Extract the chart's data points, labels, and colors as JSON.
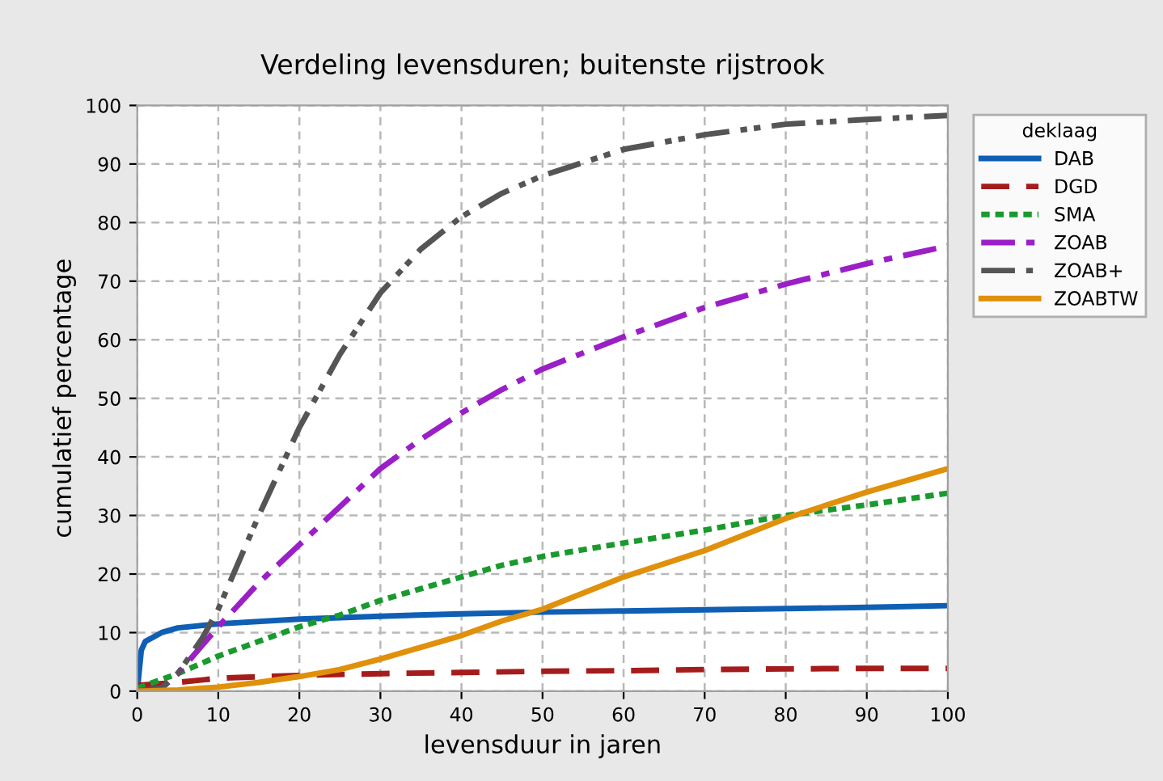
{
  "chart_data": {
    "type": "line",
    "title": "Verdeling levensduren; buitenste rijstrook",
    "xlabel": "levensduur in jaren",
    "ylabel": "cumulatief percentage",
    "legend_title": "deklaag",
    "legend": "right",
    "grid": true,
    "xlim": [
      0,
      100
    ],
    "ylim": [
      0,
      100
    ],
    "xticks": [
      0,
      10,
      20,
      30,
      40,
      50,
      60,
      70,
      80,
      90,
      100
    ],
    "yticks": [
      0,
      10,
      20,
      30,
      40,
      50,
      60,
      70,
      80,
      90,
      100
    ],
    "series": [
      {
        "name": "DAB",
        "color": "#0f5fb4",
        "line_style": "solid",
        "x": [
          0,
          0.5,
          1,
          3,
          5,
          10,
          20,
          30,
          40,
          50,
          60,
          70,
          80,
          90,
          100
        ],
        "values": [
          0,
          7,
          8.5,
          10,
          10.8,
          11.5,
          12.3,
          12.8,
          13.2,
          13.5,
          13.7,
          13.9,
          14.1,
          14.3,
          14.6
        ]
      },
      {
        "name": "DGD",
        "color": "#a51c1c",
        "line_style": "dashed",
        "x": [
          0,
          5,
          10,
          20,
          30,
          40,
          50,
          60,
          70,
          80,
          90,
          100
        ],
        "values": [
          1,
          1.5,
          2.2,
          2.7,
          3,
          3.2,
          3.4,
          3.5,
          3.7,
          3.8,
          3.9,
          3.9
        ]
      },
      {
        "name": "SMA",
        "color": "#1a9a2e",
        "line_style": "dotted",
        "x": [
          0,
          5,
          10,
          15,
          20,
          25,
          30,
          35,
          40,
          45,
          50,
          60,
          70,
          80,
          90,
          100
        ],
        "values": [
          0.5,
          3,
          6,
          8.5,
          11,
          13,
          15.5,
          17.5,
          19.5,
          21.5,
          23,
          25.3,
          27.5,
          30,
          31.8,
          33.8
        ]
      },
      {
        "name": "ZOAB",
        "color": "#9b1fc6",
        "line_style": "dashdot",
        "x": [
          0,
          3,
          5,
          10,
          15,
          20,
          25,
          30,
          35,
          40,
          45,
          50,
          60,
          70,
          80,
          90,
          100
        ],
        "values": [
          0,
          0.5,
          3,
          11,
          18.5,
          25,
          31.5,
          38,
          43,
          47.5,
          51.5,
          55,
          60.5,
          65.5,
          69.5,
          73,
          76
        ]
      },
      {
        "name": "ZOAB+",
        "color": "#555555",
        "line_style": "dashdotdot",
        "x": [
          0,
          3,
          5,
          8,
          10,
          15,
          20,
          25,
          30,
          35,
          40,
          45,
          50,
          60,
          70,
          80,
          90,
          100
        ],
        "values": [
          0,
          0.5,
          3,
          9,
          14,
          30,
          45,
          57.5,
          68,
          75.5,
          81,
          85,
          88,
          92.5,
          95,
          96.8,
          97.6,
          98.3
        ]
      },
      {
        "name": "ZOABTW",
        "color": "#e0900a",
        "line_style": "solid",
        "x": [
          0,
          5,
          10,
          15,
          20,
          25,
          30,
          35,
          40,
          45,
          50,
          60,
          70,
          80,
          90,
          100
        ],
        "values": [
          0,
          0.2,
          0.7,
          1.5,
          2.5,
          3.7,
          5.5,
          7.5,
          9.5,
          12,
          14,
          19.5,
          24,
          29.5,
          34,
          38
        ]
      }
    ]
  }
}
